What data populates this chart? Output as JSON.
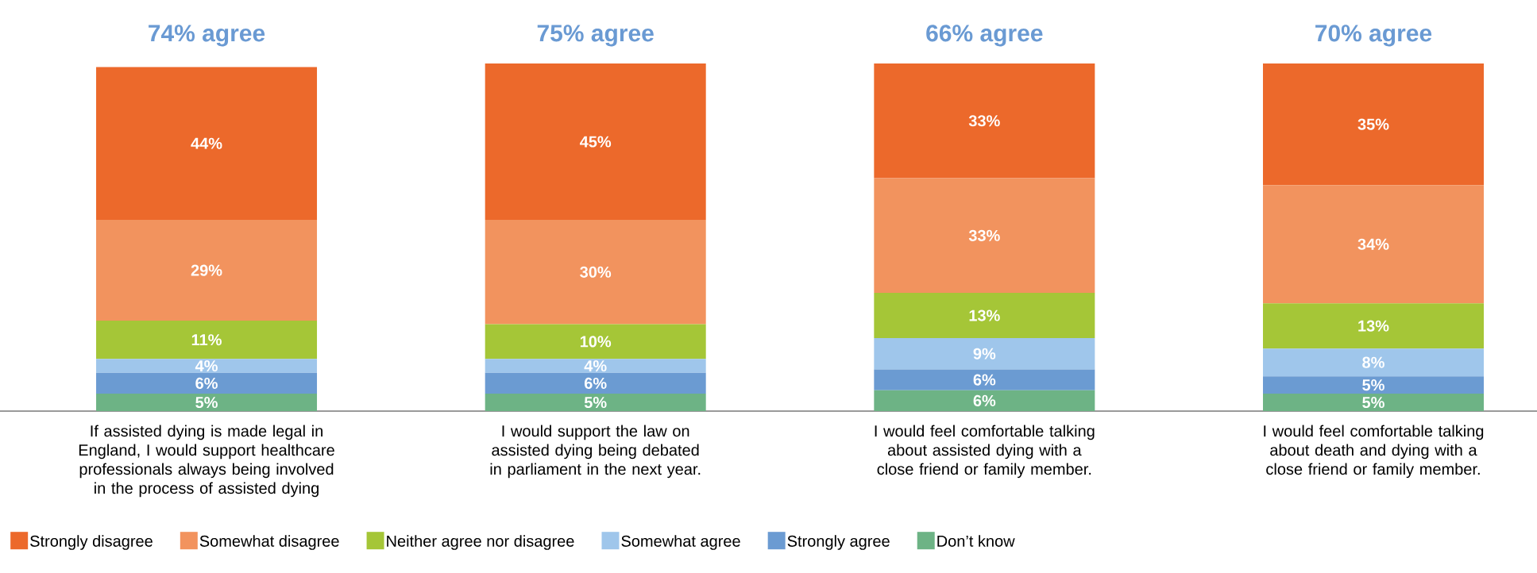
{
  "chart_data": {
    "type": "bar",
    "stacked": true,
    "legend": "bottom",
    "categories": [
      "If assisted dying is made legal in England, I would support healthcare professionals always being involved in the process of assisted dying",
      "I would support the law on assisted dying being debated in parliament in the next year.",
      "I would feel comfortable talking about assisted dying with a close friend or family member.",
      "I would feel comfortable talking about death and dying with a close friend or family member."
    ],
    "series": [
      {
        "name": "Don’t know",
        "color": "#6db385",
        "values": [
          5,
          5,
          6,
          5
        ],
        "value_labels": [
          "5%",
          "5%",
          "6%",
          "5%"
        ]
      },
      {
        "name": "Strongly agree",
        "color": "#6b9bd2",
        "values": [
          6,
          6,
          6,
          5
        ],
        "value_labels": [
          "6%",
          "6%",
          "6%",
          "5%"
        ]
      },
      {
        "name": "Somewhat agree",
        "color": "#9fc6eb",
        "values": [
          4,
          4,
          9,
          8
        ],
        "value_labels": [
          "4%",
          "4%",
          "9%",
          "8%"
        ]
      },
      {
        "name": "Neither agree nor disagree",
        "color": "#a5c637",
        "values": [
          11,
          10,
          13,
          13
        ],
        "value_labels": [
          "11%",
          "10%",
          "13%",
          "13%"
        ]
      },
      {
        "name": "Somewhat disagree",
        "color": "#f2935e",
        "values": [
          29,
          30,
          33,
          34
        ],
        "value_labels": [
          "29%",
          "30%",
          "33%",
          "34%"
        ]
      },
      {
        "name": "Strongly disagree",
        "color": "#ec692b",
        "values": [
          44,
          45,
          33,
          35
        ],
        "value_labels": [
          "44%",
          "45%",
          "33%",
          "35%"
        ]
      }
    ],
    "annotations": [
      "74% agree",
      "75% agree",
      "66% agree",
      "70% agree"
    ]
  }
}
